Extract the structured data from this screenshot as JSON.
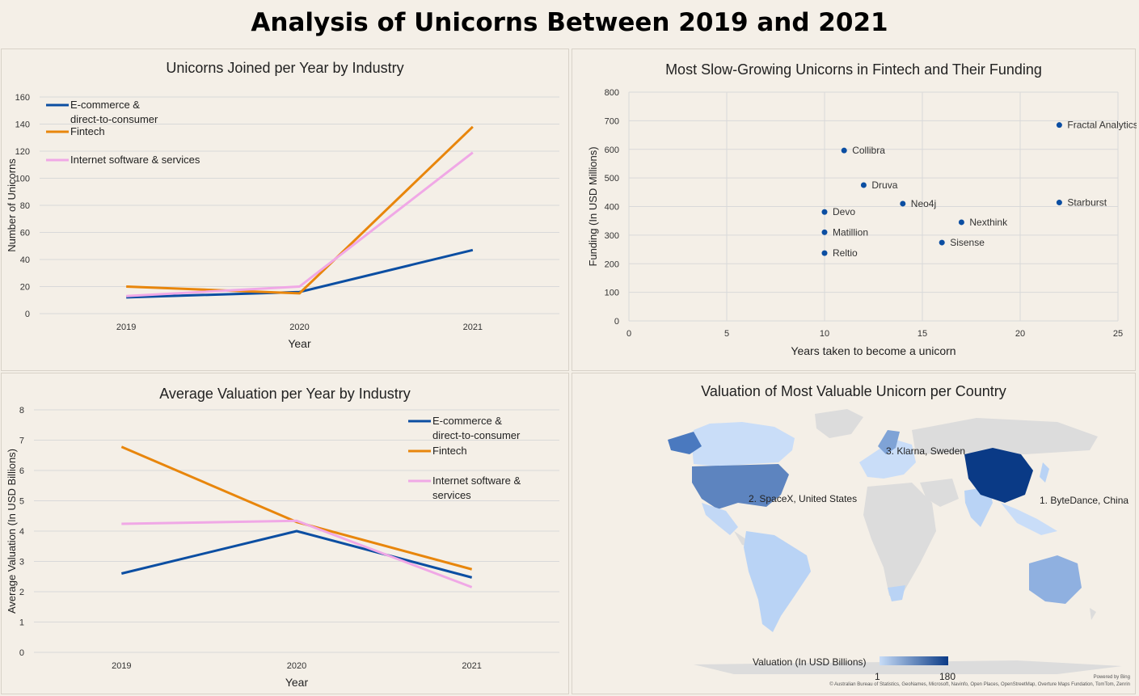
{
  "page": {
    "title": "Analysis of Unicorns Between 2019 and 2021"
  },
  "colors": {
    "ecommerce": "#0b4ea2",
    "fintech": "#e8860c",
    "internet": "#f0a8e6",
    "scatter": "#0b4ea2",
    "map_low": "#b9d3f5",
    "map_high": "#0a3a86",
    "map_none": "#dcdcdc"
  },
  "chart_data": [
    {
      "id": "joined",
      "type": "line",
      "title": "Unicorns Joined per Year by Industry",
      "xlabel": "Year",
      "ylabel": "Number of Unicorns",
      "categories": [
        "2019",
        "2020",
        "2021"
      ],
      "ylim": [
        0,
        160
      ],
      "yticks": [
        0,
        20,
        40,
        60,
        80,
        100,
        120,
        140,
        160
      ],
      "grid": true,
      "legend": "top-left",
      "series": [
        {
          "name": "E-commerce & direct-to-consumer",
          "color_key": "ecommerce",
          "values": [
            12,
            16,
            47
          ]
        },
        {
          "name": "Fintech",
          "color_key": "fintech",
          "values": [
            20,
            15,
            138
          ]
        },
        {
          "name": "Internet software & services",
          "color_key": "internet",
          "values": [
            13,
            20,
            119
          ]
        }
      ]
    },
    {
      "id": "fintech_scatter",
      "type": "scatter",
      "title": "Most Slow-Growing Unicorns in Fintech and Their Funding",
      "xlabel": "Years taken to become a unicorn",
      "ylabel": "Funding (In USD Millions)",
      "xlim": [
        0,
        25
      ],
      "ylim": [
        0,
        800
      ],
      "xticks": [
        0,
        5,
        10,
        15,
        20,
        25
      ],
      "yticks": [
        0,
        100,
        200,
        300,
        400,
        500,
        600,
        700,
        800
      ],
      "grid": true,
      "points": [
        {
          "label": "Fractal Analytics",
          "x": 22,
          "y": 685
        },
        {
          "label": "Collibra",
          "x": 11,
          "y": 596
        },
        {
          "label": "Druva",
          "x": 12,
          "y": 475
        },
        {
          "label": "Neo4j",
          "x": 14,
          "y": 410
        },
        {
          "label": "Starburst",
          "x": 22,
          "y": 414
        },
        {
          "label": "Devo",
          "x": 10,
          "y": 381
        },
        {
          "label": "Nexthink",
          "x": 17,
          "y": 345
        },
        {
          "label": "Matillion",
          "x": 10,
          "y": 310
        },
        {
          "label": "Sisense",
          "x": 16,
          "y": 274
        },
        {
          "label": "Reltio",
          "x": 10,
          "y": 237
        }
      ]
    },
    {
      "id": "valuation",
      "type": "line",
      "title": "Average  Valuation per Year by Industry",
      "xlabel": "Year",
      "ylabel": "Average Valuation (In USD Billions)",
      "categories": [
        "2019",
        "2020",
        "2021"
      ],
      "ylim": [
        0,
        8
      ],
      "yticks": [
        0,
        1,
        2,
        3,
        4,
        5,
        6,
        7,
        8
      ],
      "grid": true,
      "legend": "top-right",
      "series": [
        {
          "name": "E-commerce & direct-to-consumer",
          "color_key": "ecommerce",
          "values": [
            2.6,
            4.0,
            2.47
          ]
        },
        {
          "name": "Fintech",
          "color_key": "fintech",
          "values": [
            6.78,
            4.3,
            2.74
          ]
        },
        {
          "name": "Internet software & services",
          "color_key": "internet",
          "values": [
            4.24,
            4.34,
            2.15
          ]
        }
      ]
    }
  ],
  "map": {
    "title": "Valuation of Most Valuable Unicorn per Country",
    "legend_title": "Valuation (In USD Billions)",
    "legend_min": "1",
    "legend_max": "180",
    "labels": [
      {
        "text": "1. ByteDance,  China",
        "value": 180
      },
      {
        "text": "2. SpaceX,  United States",
        "value": 100
      },
      {
        "text": "3. Klarna,  Sweden",
        "value": 46
      }
    ],
    "powered_by": "Powered by Bing",
    "credits": "© Australian Bureau of Statistics, GeoNames, Microsoft, Navinfo, Open Places, OpenStreetMap, Overture Maps Fundation, TomTom, Zenrin"
  }
}
